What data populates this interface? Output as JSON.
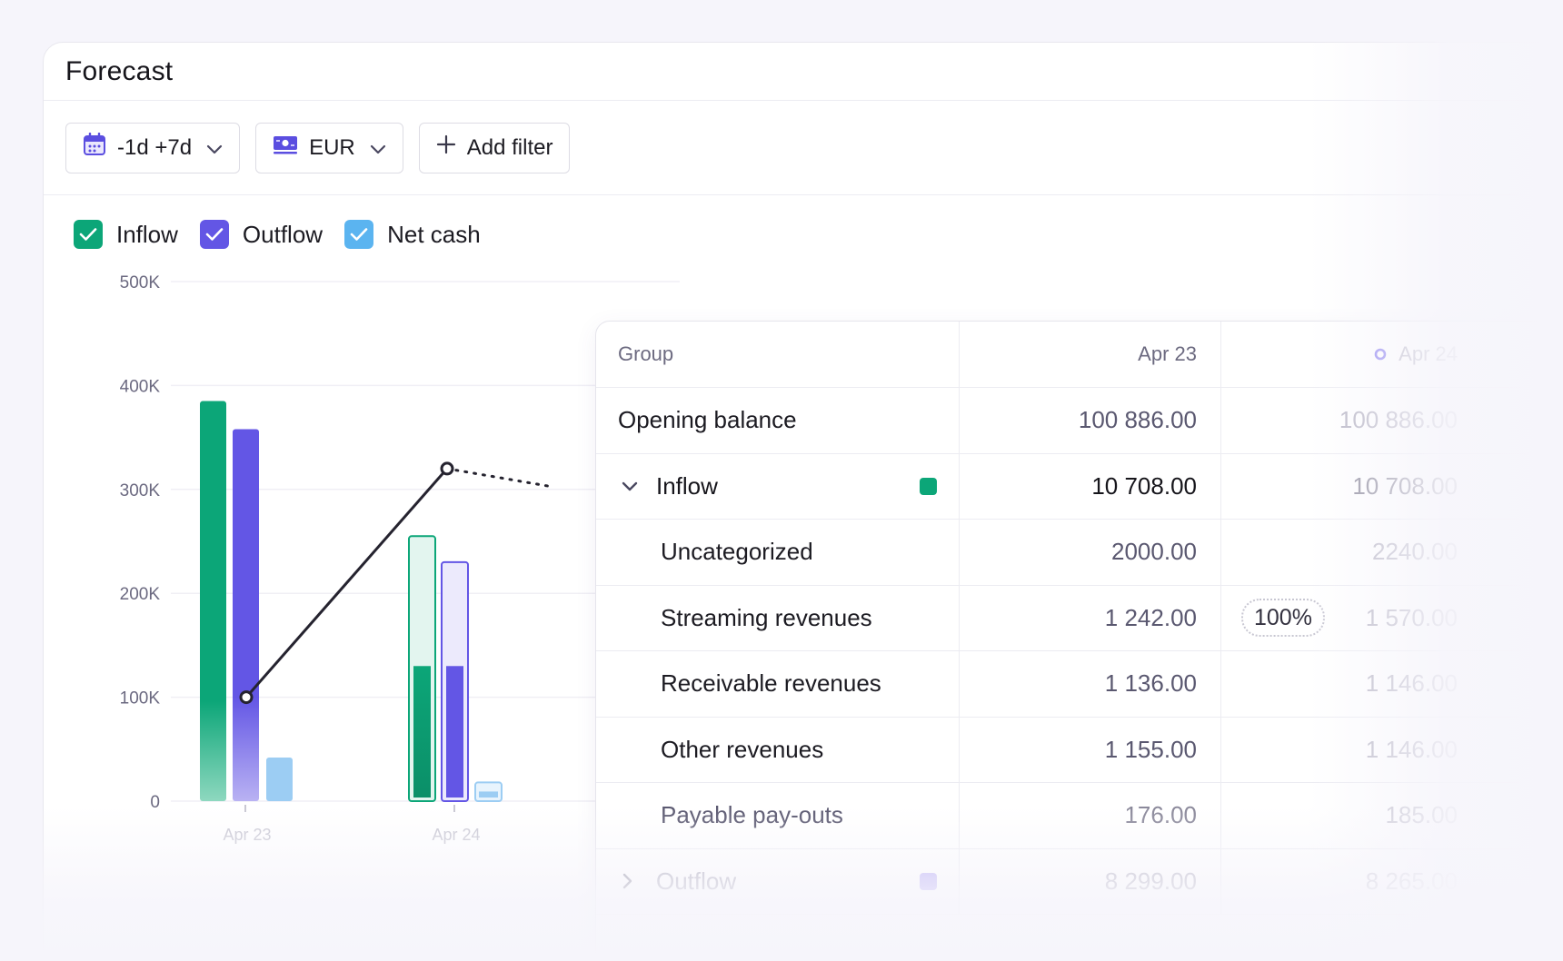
{
  "card": {
    "title": "Forecast"
  },
  "toolbar": {
    "range_label": "-1d +7d",
    "currency_label": "EUR",
    "add_filter_label": "Add filter"
  },
  "legend": [
    {
      "label": "Inflow",
      "color": "#0ca678"
    },
    {
      "label": "Outflow",
      "color": "#6356e5"
    },
    {
      "label": "Net cash",
      "color": "#5bb4f0"
    }
  ],
  "chart_data": {
    "type": "bar",
    "categories": [
      "Apr 23",
      "Apr 24"
    ],
    "ylim": [
      0,
      500000
    ],
    "yticks": [
      "0",
      "100K",
      "200K",
      "300K",
      "400K",
      "500K"
    ],
    "series": [
      {
        "name": "Inflow",
        "values": [
          385000,
          255000
        ],
        "color": "#0ca678"
      },
      {
        "name": "Outflow",
        "values": [
          358000,
          230000
        ],
        "color": "#6356e5"
      },
      {
        "name": "Net cash",
        "values": [
          42000,
          18000
        ],
        "color": "#9ccdf3"
      }
    ],
    "projected_fill": {
      "Inflow": [
        null,
        130000
      ],
      "Outflow": [
        null,
        130000
      ]
    },
    "net_line": [
      100000,
      320000
    ]
  },
  "table": {
    "headers": {
      "group": "Group",
      "apr23": "Apr 23",
      "apr24": "Apr 24"
    },
    "rows": [
      {
        "label": "Opening balance",
        "apr23": "100 886.00",
        "apr24": "100 886.00",
        "kind": "plain"
      },
      {
        "label": "Inflow",
        "apr23": "10 708.00",
        "apr24": "10 708.00",
        "kind": "group-open",
        "swatch": "#0ca678"
      },
      {
        "label": "Uncategorized",
        "apr23": "2000.00",
        "apr24": "2240.00",
        "kind": "sub"
      },
      {
        "label": "Streaming revenues",
        "apr23": "1 242.00",
        "apr24": "1 570.00",
        "kind": "sub",
        "badge": "100%"
      },
      {
        "label": "Receivable revenues",
        "apr23": "1 136.00",
        "apr24": "1 146.00",
        "kind": "sub"
      },
      {
        "label": "Other revenues",
        "apr23": "1 155.00",
        "apr24": "1 146.00",
        "kind": "sub"
      },
      {
        "label": "Payable pay-outs",
        "apr23": "176.00",
        "apr24": "185.00",
        "kind": "sub-muted"
      },
      {
        "label": "Outflow",
        "apr23": "8 299.00",
        "apr24": "8 265.00",
        "kind": "group-closed",
        "swatch": "#b6a9f5"
      }
    ]
  }
}
